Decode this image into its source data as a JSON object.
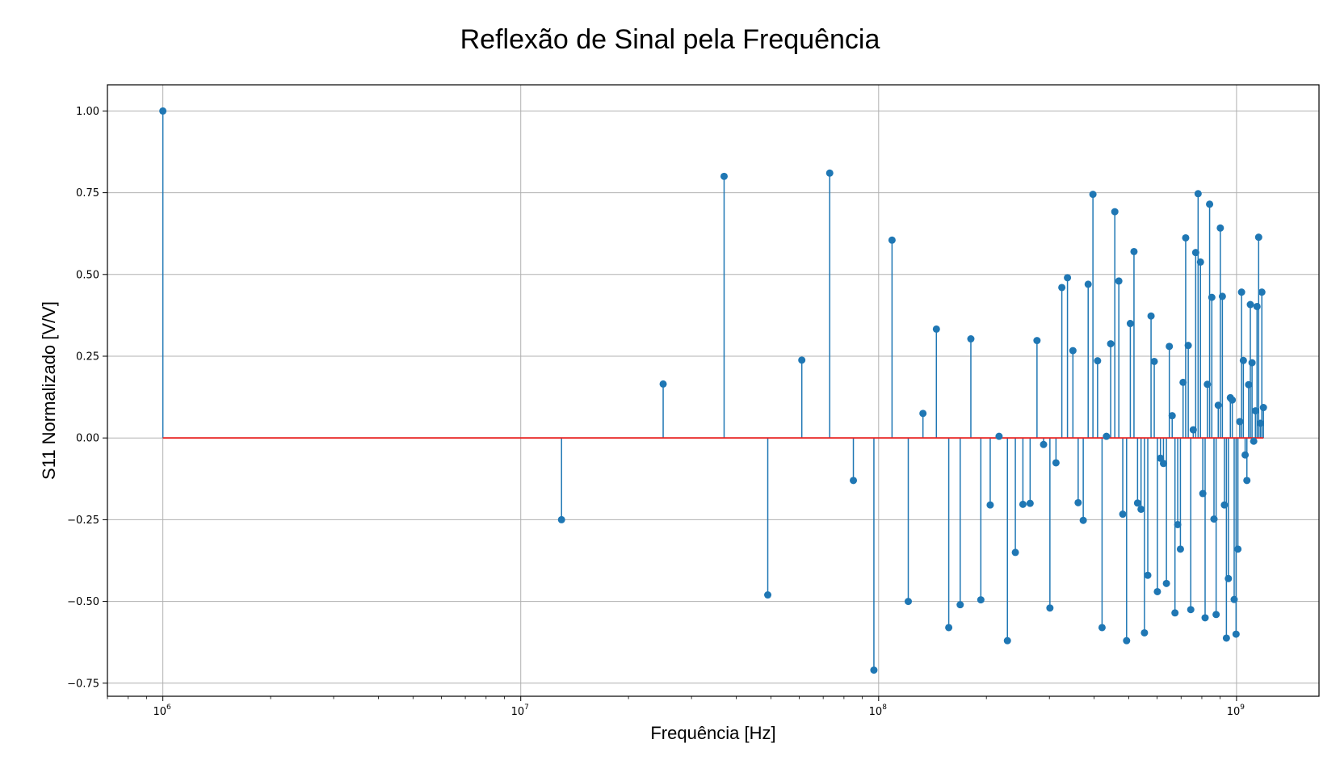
{
  "chart_data": {
    "type": "stem",
    "title": "Reflexão de Sinal pela Frequência",
    "xlabel": "Frequência [Hz]",
    "ylabel": "S11 Normalizado [V/V]",
    "xscale": "log",
    "xlim": [
      700000,
      1700000000
    ],
    "ylim": [
      -0.79,
      1.08
    ],
    "grid": true,
    "baseline": 0,
    "colors": {
      "stem": "#1f77b4",
      "baseline": "#e8211f",
      "grid": "#b0b0b0"
    },
    "x_tick_labels": [
      {
        "base": "10",
        "exp": "6",
        "value": 1000000
      },
      {
        "base": "10",
        "exp": "7",
        "value": 10000000
      },
      {
        "base": "10",
        "exp": "8",
        "value": 100000000
      },
      {
        "base": "10",
        "exp": "9",
        "value": 1000000000
      }
    ],
    "y_tick_labels": [
      "1.00",
      "0.75",
      "0.50",
      "0.25",
      "0.00",
      "−0.25",
      "−0.50",
      "−0.75"
    ],
    "y_tick_values": [
      1.0,
      0.75,
      0.5,
      0.25,
      0.0,
      -0.25,
      -0.5,
      -0.75
    ],
    "x": [
      1000000,
      13000000,
      25000000,
      37000000,
      49000000,
      61000000,
      73000000,
      85000000,
      97000000,
      109000000,
      121000000,
      133000000,
      145000000,
      157000000,
      169000000,
      181000000,
      193000000,
      205000000,
      217000000,
      229000000,
      241000000,
      253000000,
      265000000,
      277000000,
      289000000,
      301000000,
      313000000,
      325000000,
      337000000,
      349000000,
      361000000,
      373000000,
      385000000,
      397000000,
      409000000,
      421000000,
      433000000,
      445000000,
      457000000,
      469000000,
      481000000,
      493000000,
      505000000,
      517000000,
      529000000,
      541000000,
      553000000,
      565000000,
      577000000,
      589000000,
      601000000,
      613000000,
      625000000,
      637000000,
      649000000,
      661000000,
      673000000,
      685000000,
      697000000,
      709000000,
      721000000,
      733000000,
      745000000,
      757000000,
      769000000,
      781000000,
      793000000,
      805000000,
      817000000,
      829000000,
      841000000,
      853000000,
      865000000,
      877000000,
      889000000,
      901000000,
      913000000,
      925000000,
      937000000,
      949000000,
      961000000,
      973000000,
      985000000,
      997000000,
      1009000000,
      1021000000,
      1033000000,
      1045000000,
      1057000000,
      1069000000,
      1081000000,
      1093000000,
      1105000000,
      1117000000,
      1129000000,
      1141000000,
      1153000000,
      1165000000,
      1177000000,
      1189000000
    ],
    "values": [
      1.0,
      -0.25,
      0.165,
      0.8,
      -0.48,
      0.238,
      0.81,
      -0.13,
      -0.71,
      0.605,
      -0.5,
      0.075,
      0.333,
      -0.58,
      -0.51,
      0.303,
      -0.495,
      -0.205,
      0.005,
      -0.62,
      -0.35,
      -0.203,
      -0.2,
      0.298,
      -0.02,
      -0.52,
      -0.076,
      0.46,
      0.49,
      0.267,
      -0.198,
      -0.252,
      0.47,
      0.745,
      0.236,
      -0.58,
      0.005,
      0.288,
      0.692,
      0.48,
      -0.233,
      -0.62,
      0.35,
      0.57,
      -0.199,
      -0.218,
      -0.596,
      -0.42,
      0.373,
      0.234,
      -0.47,
      -0.062,
      -0.078,
      -0.445,
      0.28,
      0.068,
      -0.535,
      -0.265,
      -0.34,
      0.17,
      0.612,
      0.283,
      -0.525,
      0.025,
      0.567,
      0.747,
      0.538,
      -0.17,
      -0.55,
      0.164,
      0.715,
      0.43,
      -0.248,
      -0.54,
      0.1,
      0.642,
      0.433,
      -0.205,
      -0.612,
      -0.43,
      0.123,
      0.116,
      -0.494,
      -0.6,
      -0.34,
      0.05,
      0.446,
      0.237,
      -0.052,
      -0.13,
      0.163,
      0.408,
      0.23,
      -0.01,
      0.083,
      0.402,
      0.614,
      0.045,
      0.446,
      0.093
    ]
  }
}
